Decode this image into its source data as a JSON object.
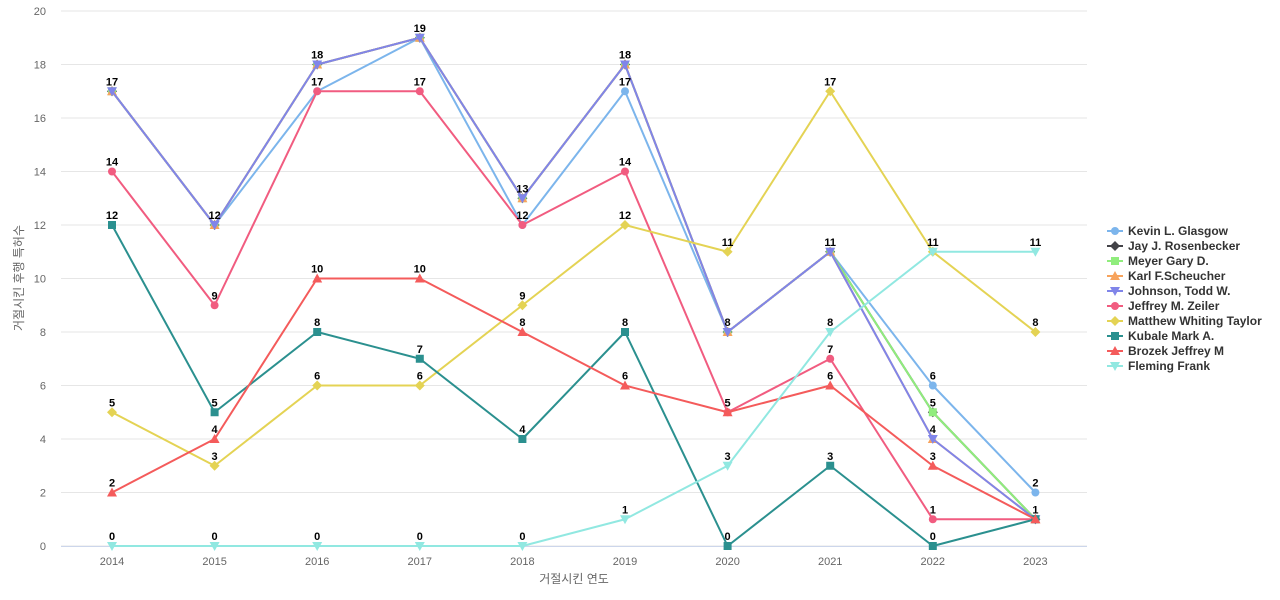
{
  "chart_data": {
    "type": "line",
    "xlabel": "거절시킨 연도",
    "ylabel": "거절시킨 후행 특허수",
    "ylim": [
      0,
      20
    ],
    "yticks": [
      0,
      2,
      4,
      6,
      8,
      10,
      12,
      14,
      16,
      18,
      20
    ],
    "categories": [
      "2014",
      "2015",
      "2016",
      "2017",
      "2018",
      "2019",
      "2020",
      "2021",
      "2022",
      "2023"
    ],
    "grid": true,
    "legend_position": "right",
    "series": [
      {
        "name": "Kevin L. Glasgow",
        "color": "#7cb5ec",
        "marker": "circle",
        "values": [
          17,
          12,
          17,
          19,
          12,
          17,
          8,
          11,
          6,
          2
        ]
      },
      {
        "name": "Jay J. Rosenbecker",
        "color": "#434348",
        "marker": "diamond",
        "values": [
          17,
          12,
          18,
          19,
          13,
          18,
          8,
          11,
          5,
          1
        ]
      },
      {
        "name": "Meyer Gary D.",
        "color": "#90ed7d",
        "marker": "square",
        "values": [
          17,
          12,
          18,
          19,
          13,
          18,
          8,
          11,
          5,
          1
        ]
      },
      {
        "name": "Karl F.Scheucher",
        "color": "#f7a35c",
        "marker": "triangle",
        "values": [
          17,
          12,
          18,
          19,
          13,
          18,
          8,
          11,
          4,
          1
        ]
      },
      {
        "name": "Johnson, Todd W.",
        "color": "#8085e9",
        "marker": "triangle-down",
        "values": [
          17,
          12,
          18,
          19,
          13,
          18,
          8,
          11,
          4,
          1
        ]
      },
      {
        "name": "Jeffrey M. Zeiler",
        "color": "#f15c80",
        "marker": "circle",
        "values": [
          14,
          9,
          17,
          17,
          12,
          14,
          5,
          7,
          1,
          1
        ]
      },
      {
        "name": "Matthew Whiting Taylor",
        "color": "#e4d354",
        "marker": "diamond",
        "values": [
          5,
          3,
          6,
          6,
          9,
          12,
          11,
          17,
          11,
          8
        ]
      },
      {
        "name": "Kubale Mark A.",
        "color": "#2b908f",
        "marker": "square",
        "values": [
          12,
          5,
          8,
          7,
          4,
          8,
          0,
          3,
          0,
          1
        ]
      },
      {
        "name": "Brozek Jeffrey M",
        "color": "#f45b5b",
        "marker": "triangle",
        "values": [
          2,
          4,
          10,
          10,
          8,
          6,
          5,
          6,
          3,
          1
        ]
      },
      {
        "name": "Fleming Frank",
        "color": "#91e8e1",
        "marker": "triangle-down",
        "values": [
          0,
          0,
          0,
          0,
          0,
          1,
          3,
          8,
          11,
          11
        ]
      }
    ],
    "data_labels": [
      {
        "category": "2014",
        "values": [
          17,
          14,
          12,
          5,
          2,
          0
        ]
      },
      {
        "category": "2015",
        "values": [
          12,
          9,
          5,
          4,
          3,
          0
        ]
      },
      {
        "category": "2016",
        "values": [
          18,
          17,
          10,
          8,
          6,
          0
        ]
      },
      {
        "category": "2017",
        "values": [
          19,
          17,
          10,
          7,
          6,
          0
        ]
      },
      {
        "category": "2018",
        "values": [
          13,
          12,
          9,
          8,
          4,
          0
        ]
      },
      {
        "category": "2019",
        "values": [
          18,
          17,
          14,
          12,
          8,
          6,
          1
        ]
      },
      {
        "category": "2020",
        "values": [
          11,
          8,
          5,
          3,
          0
        ]
      },
      {
        "category": "2021",
        "values": [
          17,
          11,
          8,
          7,
          6,
          3
        ]
      },
      {
        "category": "2022",
        "values": [
          11,
          6,
          5,
          4,
          3,
          1,
          0
        ]
      },
      {
        "category": "2023",
        "values": [
          11,
          8,
          2,
          1
        ]
      }
    ]
  }
}
